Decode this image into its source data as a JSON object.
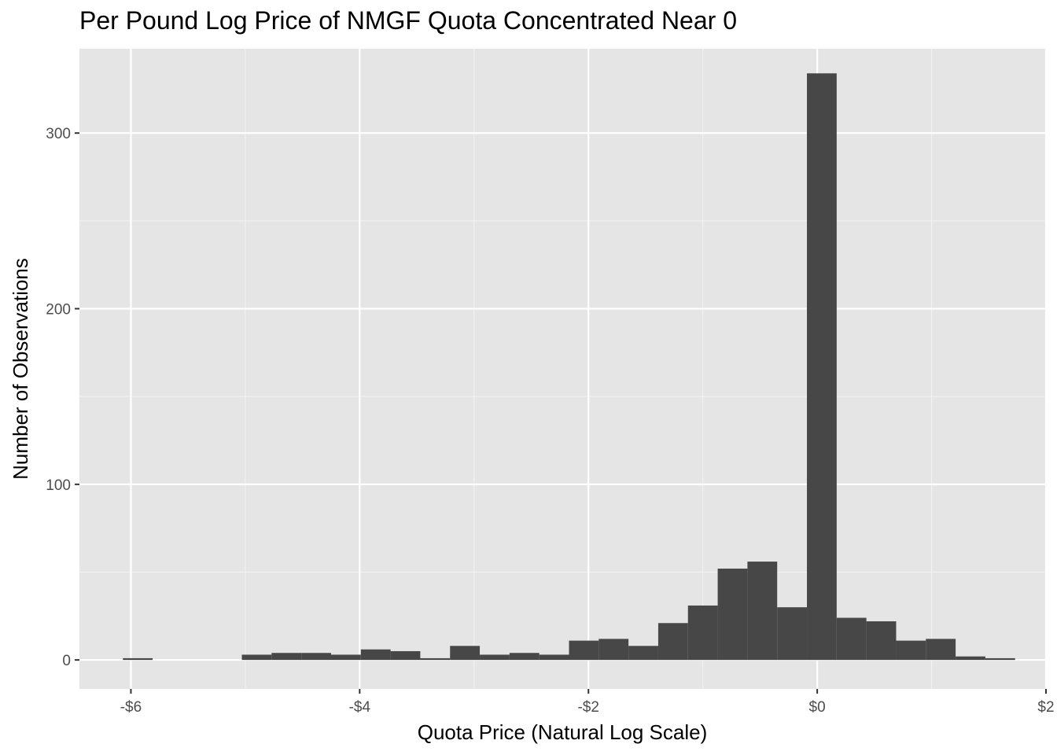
{
  "chart_data": {
    "type": "bar",
    "title": "Per Pound Log Price of NMGF Quota Concentrated Near 0",
    "xlabel": "Quota Price (Natural Log Scale)",
    "ylabel": "Number of Observations",
    "xlim": [
      -6.45,
      2.0
    ],
    "ylim": [
      -16.5,
      348
    ],
    "x_ticks": [
      -6,
      -4,
      -2,
      0,
      2
    ],
    "x_tick_labels": [
      "-$6",
      "-$4",
      "-$2",
      "$0",
      "$2"
    ],
    "y_ticks": [
      0,
      100,
      200,
      300
    ],
    "y_tick_labels": [
      "0",
      "100",
      "200",
      "300"
    ],
    "grid": true,
    "bar_color": "#474747",
    "panel_color": "#e5e5e5",
    "bins": [
      {
        "x0": -6.07,
        "x1": -5.81,
        "count": 1
      },
      {
        "x0": -5.03,
        "x1": -4.77,
        "count": 3
      },
      {
        "x0": -4.77,
        "x1": -4.51,
        "count": 4
      },
      {
        "x0": -4.51,
        "x1": -4.25,
        "count": 4
      },
      {
        "x0": -4.25,
        "x1": -3.99,
        "count": 3
      },
      {
        "x0": -3.99,
        "x1": -3.73,
        "count": 6
      },
      {
        "x0": -3.73,
        "x1": -3.47,
        "count": 5
      },
      {
        "x0": -3.47,
        "x1": -3.21,
        "count": 1
      },
      {
        "x0": -3.21,
        "x1": -2.95,
        "count": 8
      },
      {
        "x0": -2.95,
        "x1": -2.69,
        "count": 3
      },
      {
        "x0": -2.69,
        "x1": -2.43,
        "count": 4
      },
      {
        "x0": -2.43,
        "x1": -2.17,
        "count": 3
      },
      {
        "x0": -2.17,
        "x1": -1.91,
        "count": 11
      },
      {
        "x0": -1.91,
        "x1": -1.65,
        "count": 12
      },
      {
        "x0": -1.65,
        "x1": -1.39,
        "count": 8
      },
      {
        "x0": -1.39,
        "x1": -1.13,
        "count": 21
      },
      {
        "x0": -1.13,
        "x1": -0.87,
        "count": 31
      },
      {
        "x0": -0.87,
        "x1": -0.61,
        "count": 52
      },
      {
        "x0": -0.61,
        "x1": -0.35,
        "count": 56
      },
      {
        "x0": -0.35,
        "x1": -0.09,
        "count": 30
      },
      {
        "x0": -0.09,
        "x1": 0.17,
        "count": 334
      },
      {
        "x0": 0.17,
        "x1": 0.43,
        "count": 24
      },
      {
        "x0": 0.43,
        "x1": 0.69,
        "count": 22
      },
      {
        "x0": 0.69,
        "x1": 0.95,
        "count": 11
      },
      {
        "x0": 0.95,
        "x1": 1.21,
        "count": 12
      },
      {
        "x0": 1.21,
        "x1": 1.47,
        "count": 2
      },
      {
        "x0": 1.47,
        "x1": 1.73,
        "count": 1
      }
    ]
  }
}
